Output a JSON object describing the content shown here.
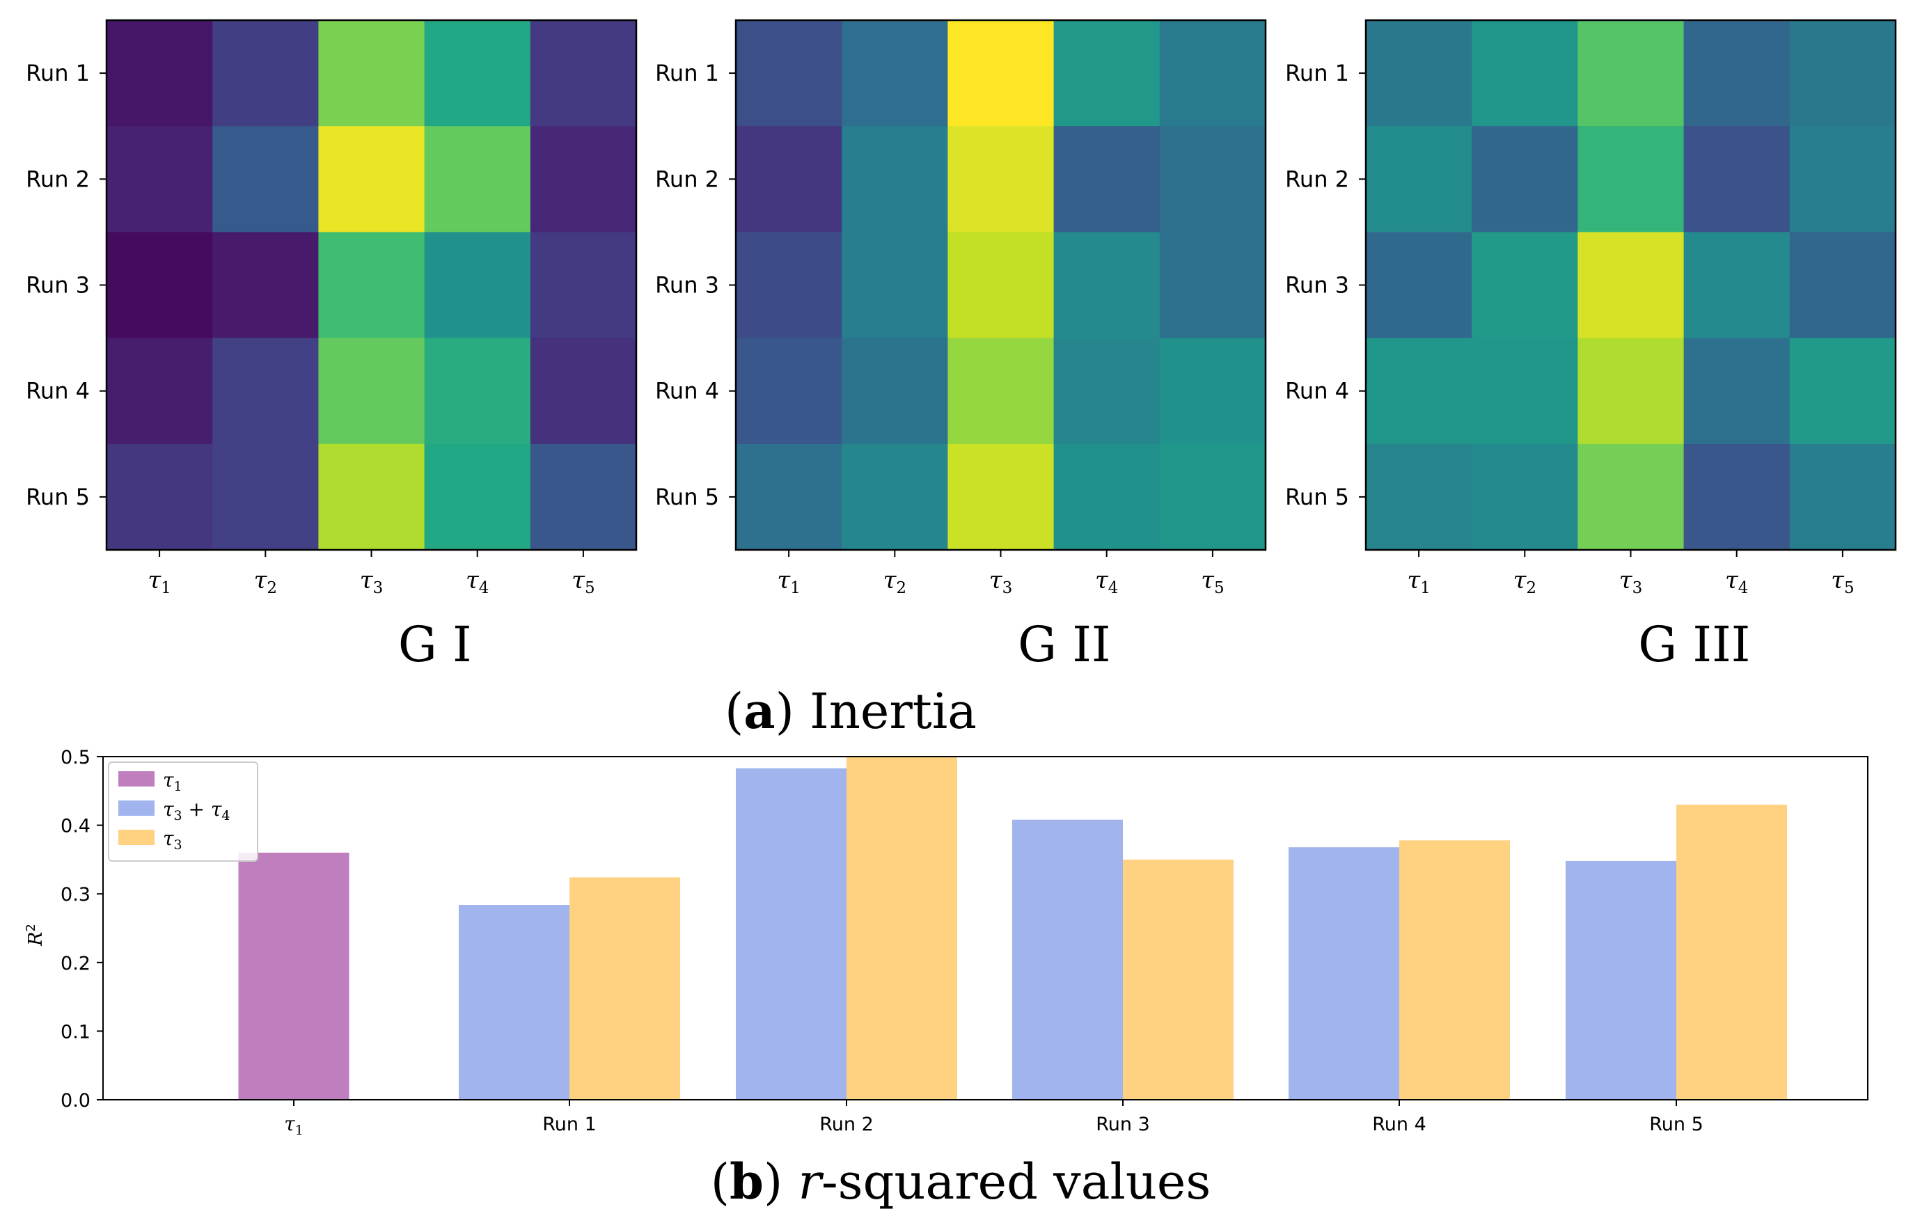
{
  "figure": {
    "panel_a_caption": {
      "letter": "a",
      "text": "Inertia"
    },
    "panel_b_caption": {
      "letter": "b",
      "var": "r",
      "text": "-squared values"
    }
  },
  "chart_data": [
    {
      "type": "heatmap",
      "title": "G I",
      "rows": [
        "Run 1",
        "Run 2",
        "Run 3",
        "Run 4",
        "Run 5"
      ],
      "columns": [
        "τ1",
        "τ2",
        "τ3",
        "τ4",
        "τ5"
      ],
      "colormap": "viridis",
      "values": [
        [
          0.06,
          0.18,
          0.8,
          0.6,
          0.17
        ],
        [
          0.09,
          0.28,
          0.97,
          0.76,
          0.11
        ],
        [
          0.03,
          0.07,
          0.69,
          0.5,
          0.17
        ],
        [
          0.08,
          0.19,
          0.76,
          0.62,
          0.14
        ],
        [
          0.16,
          0.19,
          0.88,
          0.6,
          0.27
        ]
      ]
    },
    {
      "type": "heatmap",
      "title": "G II",
      "rows": [
        "Run 1",
        "Run 2",
        "Run 3",
        "Run 4",
        "Run 5"
      ],
      "columns": [
        "τ1",
        "τ2",
        "τ3",
        "τ4",
        "τ5"
      ],
      "colormap": "viridis",
      "values": [
        [
          0.24,
          0.36,
          1.0,
          0.53,
          0.41
        ],
        [
          0.16,
          0.42,
          0.95,
          0.3,
          0.37
        ],
        [
          0.23,
          0.42,
          0.91,
          0.47,
          0.37
        ],
        [
          0.27,
          0.38,
          0.84,
          0.45,
          0.5
        ],
        [
          0.37,
          0.46,
          0.92,
          0.5,
          0.52
        ]
      ]
    },
    {
      "type": "heatmap",
      "title": "G III",
      "rows": [
        "Run 1",
        "Run 2",
        "Run 3",
        "Run 4",
        "Run 5"
      ],
      "columns": [
        "τ1",
        "τ2",
        "τ3",
        "τ4",
        "τ5"
      ],
      "colormap": "viridis",
      "values": [
        [
          0.4,
          0.52,
          0.73,
          0.33,
          0.4
        ],
        [
          0.48,
          0.33,
          0.65,
          0.25,
          0.42
        ],
        [
          0.34,
          0.54,
          0.94,
          0.47,
          0.33
        ],
        [
          0.52,
          0.52,
          0.88,
          0.37,
          0.54
        ],
        [
          0.45,
          0.47,
          0.79,
          0.27,
          0.42
        ]
      ]
    },
    {
      "type": "bar",
      "categories": [
        "τ1",
        "Run 1",
        "Run 2",
        "Run 3",
        "Run 4",
        "Run 5"
      ],
      "series": [
        {
          "name": "τ1",
          "label": {
            "base": "τ",
            "sub": "1"
          },
          "color": "#BF7FBF",
          "values": [
            0.36,
            null,
            null,
            null,
            null,
            null
          ]
        },
        {
          "name": "τ3 + τ4",
          "label": {
            "base": "τ",
            "sub": "3",
            "plus": " + ",
            "base2": "τ",
            "sub2": "4"
          },
          "color": "#A1B4ED",
          "values": [
            null,
            0.284,
            0.483,
            0.408,
            0.368,
            0.348
          ]
        },
        {
          "name": "τ3",
          "label": {
            "base": "τ",
            "sub": "3"
          },
          "color": "#FED280",
          "values": [
            null,
            0.324,
            0.5,
            0.35,
            0.378,
            0.43
          ]
        }
      ],
      "ylabel": {
        "base": "R",
        "sup": "2"
      },
      "xlabel": "",
      "ylim": [
        0,
        0.5
      ],
      "yticks": [
        "0.0",
        "0.1",
        "0.2",
        "0.3",
        "0.4",
        "0.5"
      ],
      "legend_position": "upper-left"
    }
  ]
}
